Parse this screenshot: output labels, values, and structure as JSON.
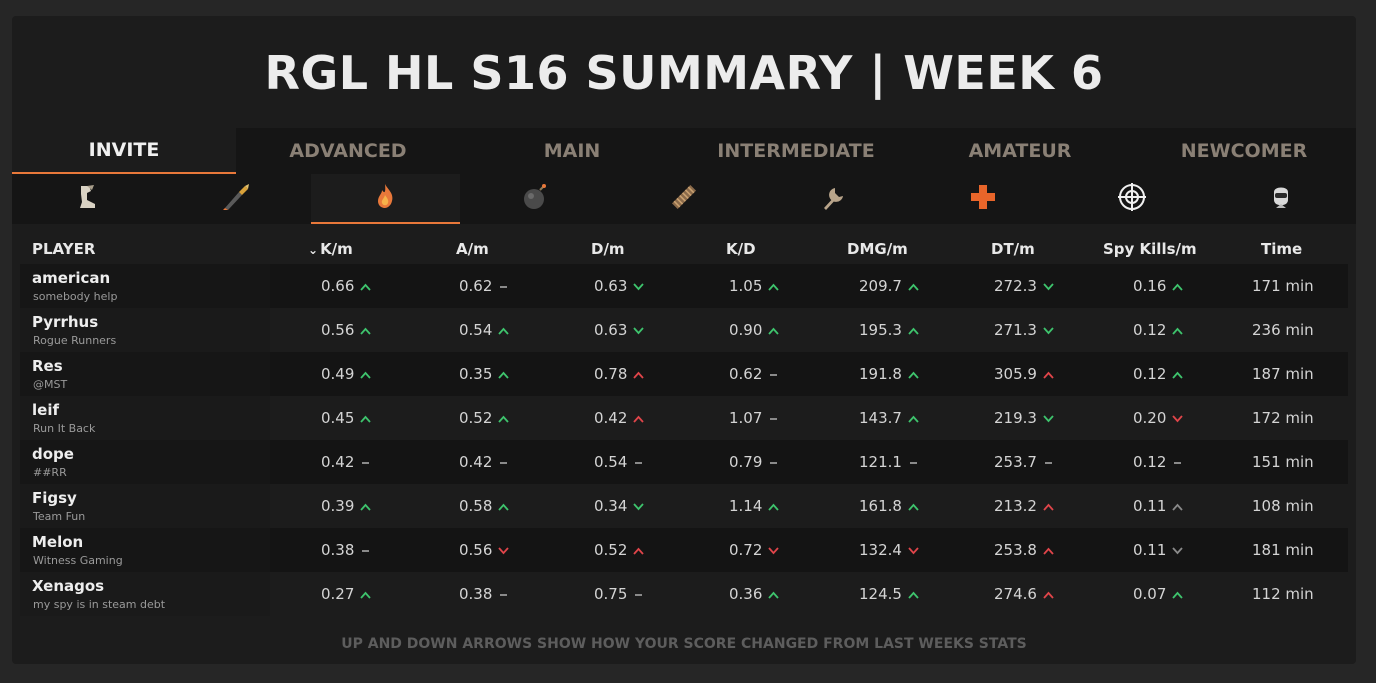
{
  "page": {
    "title": "RGL HL S16 SUMMARY | WEEK 6"
  },
  "divisions": [
    {
      "label": "INVITE",
      "active": true
    },
    {
      "label": "ADVANCED",
      "active": false
    },
    {
      "label": "MAIN",
      "active": false
    },
    {
      "label": "INTERMEDIATE",
      "active": false
    },
    {
      "label": "AMATEUR",
      "active": false
    },
    {
      "label": "NEWCOMER",
      "active": false
    }
  ],
  "classes": [
    {
      "icon": "scout-icon",
      "active": false
    },
    {
      "icon": "soldier-icon",
      "active": false
    },
    {
      "icon": "pyro-icon",
      "active": true
    },
    {
      "icon": "demoman-icon",
      "active": false
    },
    {
      "icon": "heavy-icon",
      "active": false
    },
    {
      "icon": "engineer-icon",
      "active": false
    },
    {
      "icon": "medic-icon",
      "active": false
    },
    {
      "icon": "sniper-icon",
      "active": false
    },
    {
      "icon": "spy-icon",
      "active": false
    }
  ],
  "table": {
    "columns": {
      "player": "PLAYER",
      "kpm": "K/m",
      "apm": "A/m",
      "dpm": "D/m",
      "kd": "K/D",
      "dmg": "DMG/m",
      "dt": "DT/m",
      "spy": "Spy Kills/m",
      "time": "Time"
    },
    "sort_indicator": "⌄",
    "rows": [
      {
        "name": "american",
        "team": "somebody help",
        "kpm": "0.66",
        "kpm_t": "up",
        "apm": "0.62",
        "apm_t": "same",
        "dpm": "0.63",
        "dpm_t": "down-good",
        "kd": "1.05",
        "kd_t": "up",
        "dmg": "209.7",
        "dmg_t": "up",
        "dt": "272.3",
        "dt_t": "down-good",
        "spy": "0.16",
        "spy_t": "up",
        "time": "171 min"
      },
      {
        "name": "Pyrrhus",
        "team": "Rogue Runners",
        "kpm": "0.56",
        "kpm_t": "up",
        "apm": "0.54",
        "apm_t": "up",
        "dpm": "0.63",
        "dpm_t": "down-good",
        "kd": "0.90",
        "kd_t": "up",
        "dmg": "195.3",
        "dmg_t": "up",
        "dt": "271.3",
        "dt_t": "down-good",
        "spy": "0.12",
        "spy_t": "up",
        "time": "236 min"
      },
      {
        "name": "Res",
        "team": "@MST",
        "kpm": "0.49",
        "kpm_t": "up",
        "apm": "0.35",
        "apm_t": "up",
        "dpm": "0.78",
        "dpm_t": "up-bad",
        "kd": "0.62",
        "kd_t": "same",
        "dmg": "191.8",
        "dmg_t": "up",
        "dt": "305.9",
        "dt_t": "up-bad",
        "spy": "0.12",
        "spy_t": "up",
        "time": "187 min"
      },
      {
        "name": "leif",
        "team": "Run It Back",
        "kpm": "0.45",
        "kpm_t": "up",
        "apm": "0.52",
        "apm_t": "up",
        "dpm": "0.42",
        "dpm_t": "up-bad",
        "kd": "1.07",
        "kd_t": "same",
        "dmg": "143.7",
        "dmg_t": "up",
        "dt": "219.3",
        "dt_t": "down-good",
        "spy": "0.20",
        "spy_t": "down",
        "time": "172 min"
      },
      {
        "name": "dope",
        "team": "##RR",
        "kpm": "0.42",
        "kpm_t": "same",
        "apm": "0.42",
        "apm_t": "same",
        "dpm": "0.54",
        "dpm_t": "same",
        "kd": "0.79",
        "kd_t": "same",
        "dmg": "121.1",
        "dmg_t": "same",
        "dt": "253.7",
        "dt_t": "same",
        "spy": "0.12",
        "spy_t": "same",
        "time": "151 min"
      },
      {
        "name": "Figsy",
        "team": "Team Fun",
        "kpm": "0.39",
        "kpm_t": "up",
        "apm": "0.58",
        "apm_t": "up",
        "dpm": "0.34",
        "dpm_t": "down-good",
        "kd": "1.14",
        "kd_t": "up",
        "dmg": "161.8",
        "dmg_t": "up",
        "dt": "213.2",
        "dt_t": "up-bad",
        "spy": "0.11",
        "spy_t": "up-grey",
        "time": "108 min"
      },
      {
        "name": "Melon",
        "team": "Witness Gaming",
        "kpm": "0.38",
        "kpm_t": "same",
        "apm": "0.56",
        "apm_t": "down",
        "dpm": "0.52",
        "dpm_t": "up-bad",
        "kd": "0.72",
        "kd_t": "down",
        "dmg": "132.4",
        "dmg_t": "down",
        "dt": "253.8",
        "dt_t": "up-bad",
        "spy": "0.11",
        "spy_t": "down-grey",
        "time": "181 min"
      },
      {
        "name": "Xenagos",
        "team": "my spy is in steam debt",
        "kpm": "0.27",
        "kpm_t": "up",
        "apm": "0.38",
        "apm_t": "same",
        "dpm": "0.75",
        "dpm_t": "same",
        "kd": "0.36",
        "kd_t": "up",
        "dmg": "124.5",
        "dmg_t": "up",
        "dt": "274.6",
        "dt_t": "up-bad",
        "spy": "0.07",
        "spy_t": "up",
        "time": "112 min"
      }
    ]
  },
  "footnote": "UP AND DOWN ARROWS SHOW HOW YOUR SCORE CHANGED FROM LAST WEEKS STATS",
  "colors": {
    "accent": "#e8783a",
    "good": "#3ec46d",
    "bad": "#e0454a",
    "neutral": "#8a8a8a"
  }
}
